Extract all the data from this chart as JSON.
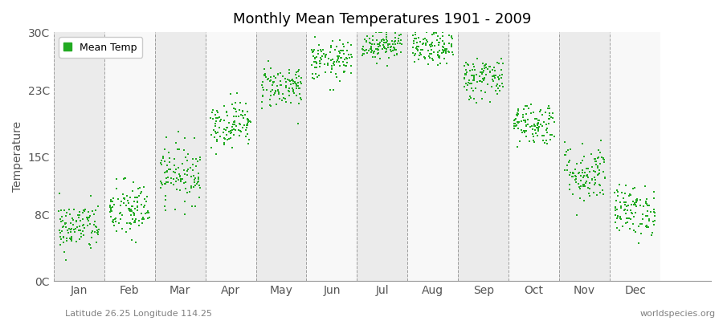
{
  "title": "Monthly Mean Temperatures 1901 - 2009",
  "ylabel": "Temperature",
  "yticks": [
    0,
    8,
    15,
    23,
    30
  ],
  "ytick_labels": [
    "0C",
    "8C",
    "15C",
    "23C",
    "30C"
  ],
  "ylim": [
    0,
    30
  ],
  "months": [
    "Jan",
    "Feb",
    "Mar",
    "Apr",
    "May",
    "Jun",
    "Jul",
    "Aug",
    "Sep",
    "Oct",
    "Nov",
    "Dec"
  ],
  "dot_color": "#22aa22",
  "bg_color_light": "#ebebeb",
  "bg_color_white": "#f8f8f8",
  "legend_label": "Mean Temp",
  "bottom_left": "Latitude 26.25 Longitude 114.25",
  "bottom_right": "worldspecies.org",
  "n_years": 109,
  "mean_temps": [
    6.5,
    8.5,
    13.0,
    19.0,
    23.5,
    26.5,
    28.5,
    28.0,
    24.5,
    19.0,
    13.0,
    8.5
  ],
  "std_temps": [
    1.5,
    1.8,
    1.8,
    1.4,
    1.3,
    1.2,
    0.9,
    1.0,
    1.3,
    1.3,
    1.8,
    1.5
  ],
  "seed": 42
}
